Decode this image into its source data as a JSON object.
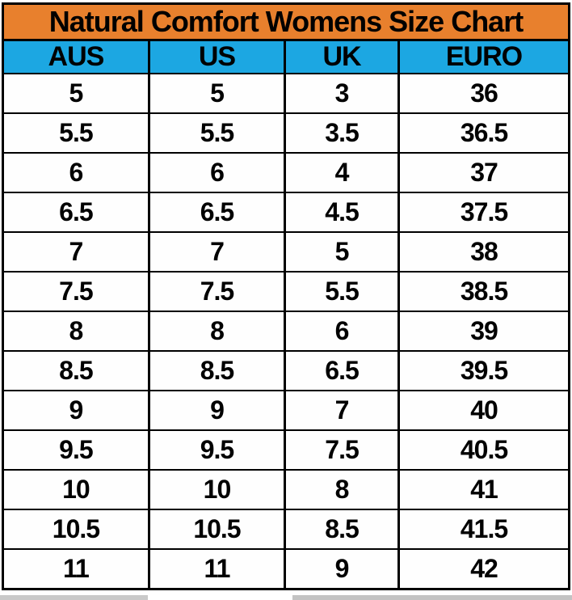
{
  "chart_data": {
    "type": "table",
    "title": "Natural Comfort Womens Size Chart",
    "columns": [
      "AUS",
      "US",
      "UK",
      "EURO"
    ],
    "rows": [
      [
        "5",
        "5",
        "3",
        "36"
      ],
      [
        "5.5",
        "5.5",
        "3.5",
        "36.5"
      ],
      [
        "6",
        "6",
        "4",
        "37"
      ],
      [
        "6.5",
        "6.5",
        "4.5",
        "37.5"
      ],
      [
        "7",
        "7",
        "5",
        "38"
      ],
      [
        "7.5",
        "7.5",
        "5.5",
        "38.5"
      ],
      [
        "8",
        "8",
        "6",
        "39"
      ],
      [
        "8.5",
        "8.5",
        "6.5",
        "39.5"
      ],
      [
        "9",
        "9",
        "7",
        "40"
      ],
      [
        "9.5",
        "9.5",
        "7.5",
        "40.5"
      ],
      [
        "10",
        "10",
        "8",
        "41"
      ],
      [
        "10.5",
        "10.5",
        "8.5",
        "41.5"
      ],
      [
        "11",
        "11",
        "9",
        "42"
      ]
    ],
    "layout": {
      "grid": "on",
      "header_position": "top"
    }
  },
  "colors": {
    "title_background": "#E8802D",
    "header_background": "#1CA7E2",
    "row_background": "#FEFEFE",
    "grid_border": "#000000",
    "text": "#000000"
  }
}
